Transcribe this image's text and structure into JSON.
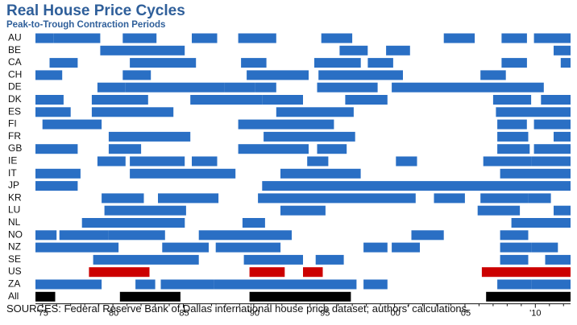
{
  "title": "Real House Price Cycles",
  "subtitle": "Peak-to-Trough Contraction Periods",
  "source": "SOURCES: Federal Reserve Bank of Dallas international house price dataset; authors' calculations.",
  "colors": {
    "episode": "#2a6fc4",
    "us": "#cc0000",
    "all": "#000000",
    "title": "#2f5f9a"
  },
  "chart_data": {
    "type": "bar",
    "subtype": "timeline",
    "xlim": [
      1974.5,
      2012.5
    ],
    "x_ticks": [
      1975,
      1980,
      1985,
      1990,
      1995,
      2000,
      2005,
      2010
    ],
    "x_tick_labels": [
      "'75",
      "'80",
      "'85",
      "'90",
      "'95",
      "'00",
      "'05",
      "'10"
    ],
    "rows": [
      {
        "label": "AU",
        "episodes": [
          [
            1974.5,
            1975.8
          ],
          [
            1975.8,
            1979.1
          ],
          [
            1980.7,
            1983.1
          ],
          [
            1985.6,
            1987.4
          ],
          [
            1988.9,
            1991.6
          ],
          [
            1994.8,
            1997
          ],
          [
            2003.5,
            2005.7
          ],
          [
            2007.6,
            2009.4
          ],
          [
            2009.9,
            2012.5
          ]
        ]
      },
      {
        "label": "BE",
        "episodes": [
          [
            1979.1,
            1985.1
          ],
          [
            1996.1,
            1998.1
          ],
          [
            1999.4,
            2001.1
          ],
          [
            2011.3,
            2012.5
          ]
        ]
      },
      {
        "label": "CA",
        "episodes": [
          [
            1975.5,
            1977.5
          ],
          [
            1981.2,
            1985.9
          ],
          [
            1989.1,
            1990.9
          ],
          [
            1994.3,
            1997.6
          ],
          [
            1998.1,
            1999.9
          ],
          [
            2007.6,
            2009.4
          ],
          [
            2011.8,
            2012.5
          ]
        ]
      },
      {
        "label": "CH",
        "episodes": [
          [
            1974.5,
            1976.4
          ],
          [
            1980.7,
            1982.7
          ],
          [
            1989.5,
            1993.9
          ],
          [
            1994.6,
            2000.6
          ],
          [
            2006.1,
            2007.9
          ]
        ]
      },
      {
        "label": "DE",
        "episodes": [
          [
            1978.9,
            1980.9
          ],
          [
            1980.9,
            1987.9
          ],
          [
            1987.9,
            1990.1
          ],
          [
            1990.1,
            1991.6
          ],
          [
            1994.5,
            1998.8
          ],
          [
            1999.8,
            2010.6
          ]
        ]
      },
      {
        "label": "DK",
        "episodes": [
          [
            1974.5,
            1976.5
          ],
          [
            1978.5,
            1982.5
          ],
          [
            1985.5,
            1990.6
          ],
          [
            1990.6,
            1993.5
          ],
          [
            1996.5,
            1999.5
          ],
          [
            2007,
            2009.7
          ],
          [
            2010.4,
            2012.5
          ]
        ]
      },
      {
        "label": "ES",
        "episodes": [
          [
            1974.5,
            1977
          ],
          [
            1978.5,
            1984.3
          ],
          [
            1991.6,
            1997.1
          ],
          [
            2007.2,
            2012.5
          ]
        ]
      },
      {
        "label": "FI",
        "episodes": [
          [
            1975,
            1979.2
          ],
          [
            1988.9,
            1993.3
          ],
          [
            1993.3,
            1995.7
          ],
          [
            2007.3,
            2009.4
          ],
          [
            2009.9,
            2012.5
          ]
        ]
      },
      {
        "label": "FR",
        "episodes": [
          [
            1979.7,
            1985.5
          ],
          [
            1990.7,
            1997.2
          ],
          [
            2007.3,
            2009.5
          ],
          [
            2011.3,
            2012.5
          ]
        ]
      },
      {
        "label": "GB",
        "episodes": [
          [
            1974.5,
            1977.5
          ],
          [
            1979.7,
            1982
          ],
          [
            1988.9,
            1993.9
          ],
          [
            1994.5,
            1996.6
          ],
          [
            2007.3,
            2009.6
          ],
          [
            2009.9,
            2012.5
          ]
        ]
      },
      {
        "label": "IE",
        "episodes": [
          [
            1978.9,
            1980.9
          ],
          [
            1981.2,
            1983.4
          ],
          [
            1983.4,
            1985.1
          ],
          [
            1985.6,
            1987.4
          ],
          [
            1993.8,
            1995.3
          ],
          [
            2000.1,
            2001.6
          ],
          [
            2006.3,
            2009.7
          ],
          [
            2009.7,
            2012.5
          ]
        ]
      },
      {
        "label": "IT",
        "episodes": [
          [
            1974.5,
            1977.7
          ],
          [
            1981.2,
            1988.7
          ],
          [
            1991.9,
            1997.6
          ],
          [
            2007.5,
            2012.5
          ]
        ]
      },
      {
        "label": "JP",
        "episodes": [
          [
            1974.5,
            1977.5
          ],
          [
            1990.6,
            2012.5
          ]
        ]
      },
      {
        "label": "KR",
        "episodes": [
          [
            1979.2,
            1982.2
          ],
          [
            1983.2,
            1987.5
          ],
          [
            1990.3,
            2001.5
          ],
          [
            2002.8,
            2005
          ],
          [
            2006.1,
            2009.5
          ],
          [
            2009.5,
            2011.1
          ]
        ]
      },
      {
        "label": "LU",
        "episodes": [
          [
            1979.4,
            1985.2
          ],
          [
            1991.9,
            1995.1
          ],
          [
            2005.9,
            2008.9
          ],
          [
            2011.3,
            2012.5
          ]
        ]
      },
      {
        "label": "NL",
        "episodes": [
          [
            1977.8,
            1985.1
          ],
          [
            1989.2,
            1990.8
          ],
          [
            2008.3,
            2012.5
          ]
        ]
      },
      {
        "label": "NO",
        "episodes": [
          [
            1974.5,
            1976
          ],
          [
            1976.2,
            1979.7
          ],
          [
            1979.7,
            1983.7
          ],
          [
            1986.1,
            1992.7
          ],
          [
            2001.2,
            2003.5
          ],
          [
            2007.5,
            2009.5
          ]
        ]
      },
      {
        "label": "NZ",
        "episodes": [
          [
            1974.5,
            1980.4
          ],
          [
            1983.5,
            1986.8
          ],
          [
            1987.3,
            1991.9
          ],
          [
            1997.8,
            1999.5
          ],
          [
            1999.8,
            2001.8
          ],
          [
            2007.5,
            2009.7
          ],
          [
            2009.7,
            2011.6
          ]
        ]
      },
      {
        "label": "SE",
        "episodes": [
          [
            1978.6,
            1986.1
          ],
          [
            1989.3,
            1993.5
          ],
          [
            1994.4,
            1996.4
          ],
          [
            2007.5,
            2009.5
          ],
          [
            2010.7,
            2012.5
          ]
        ]
      },
      {
        "label": "US",
        "episodes": [
          [
            1978.3,
            1982.6
          ],
          [
            1989.7,
            1992.2
          ],
          [
            1993.5,
            1994.9
          ],
          [
            2006.2,
            2012.5
          ]
        ]
      },
      {
        "label": "ZA",
        "episodes": [
          [
            1974.5,
            1979.2
          ],
          [
            1981.6,
            1983
          ],
          [
            1983.4,
            1987.2
          ],
          [
            1987.2,
            1993.5
          ],
          [
            1993.5,
            1997.3
          ],
          [
            1997.8,
            1999.5
          ],
          [
            2007.3,
            2009.7
          ],
          [
            2009.7,
            2012.5
          ]
        ]
      },
      {
        "label": "All",
        "episodes": [
          [
            1974.5,
            1975.9
          ],
          [
            1980.5,
            1984.8
          ],
          [
            1989.7,
            1996.9
          ],
          [
            2006.5,
            2012.5
          ]
        ]
      }
    ]
  }
}
